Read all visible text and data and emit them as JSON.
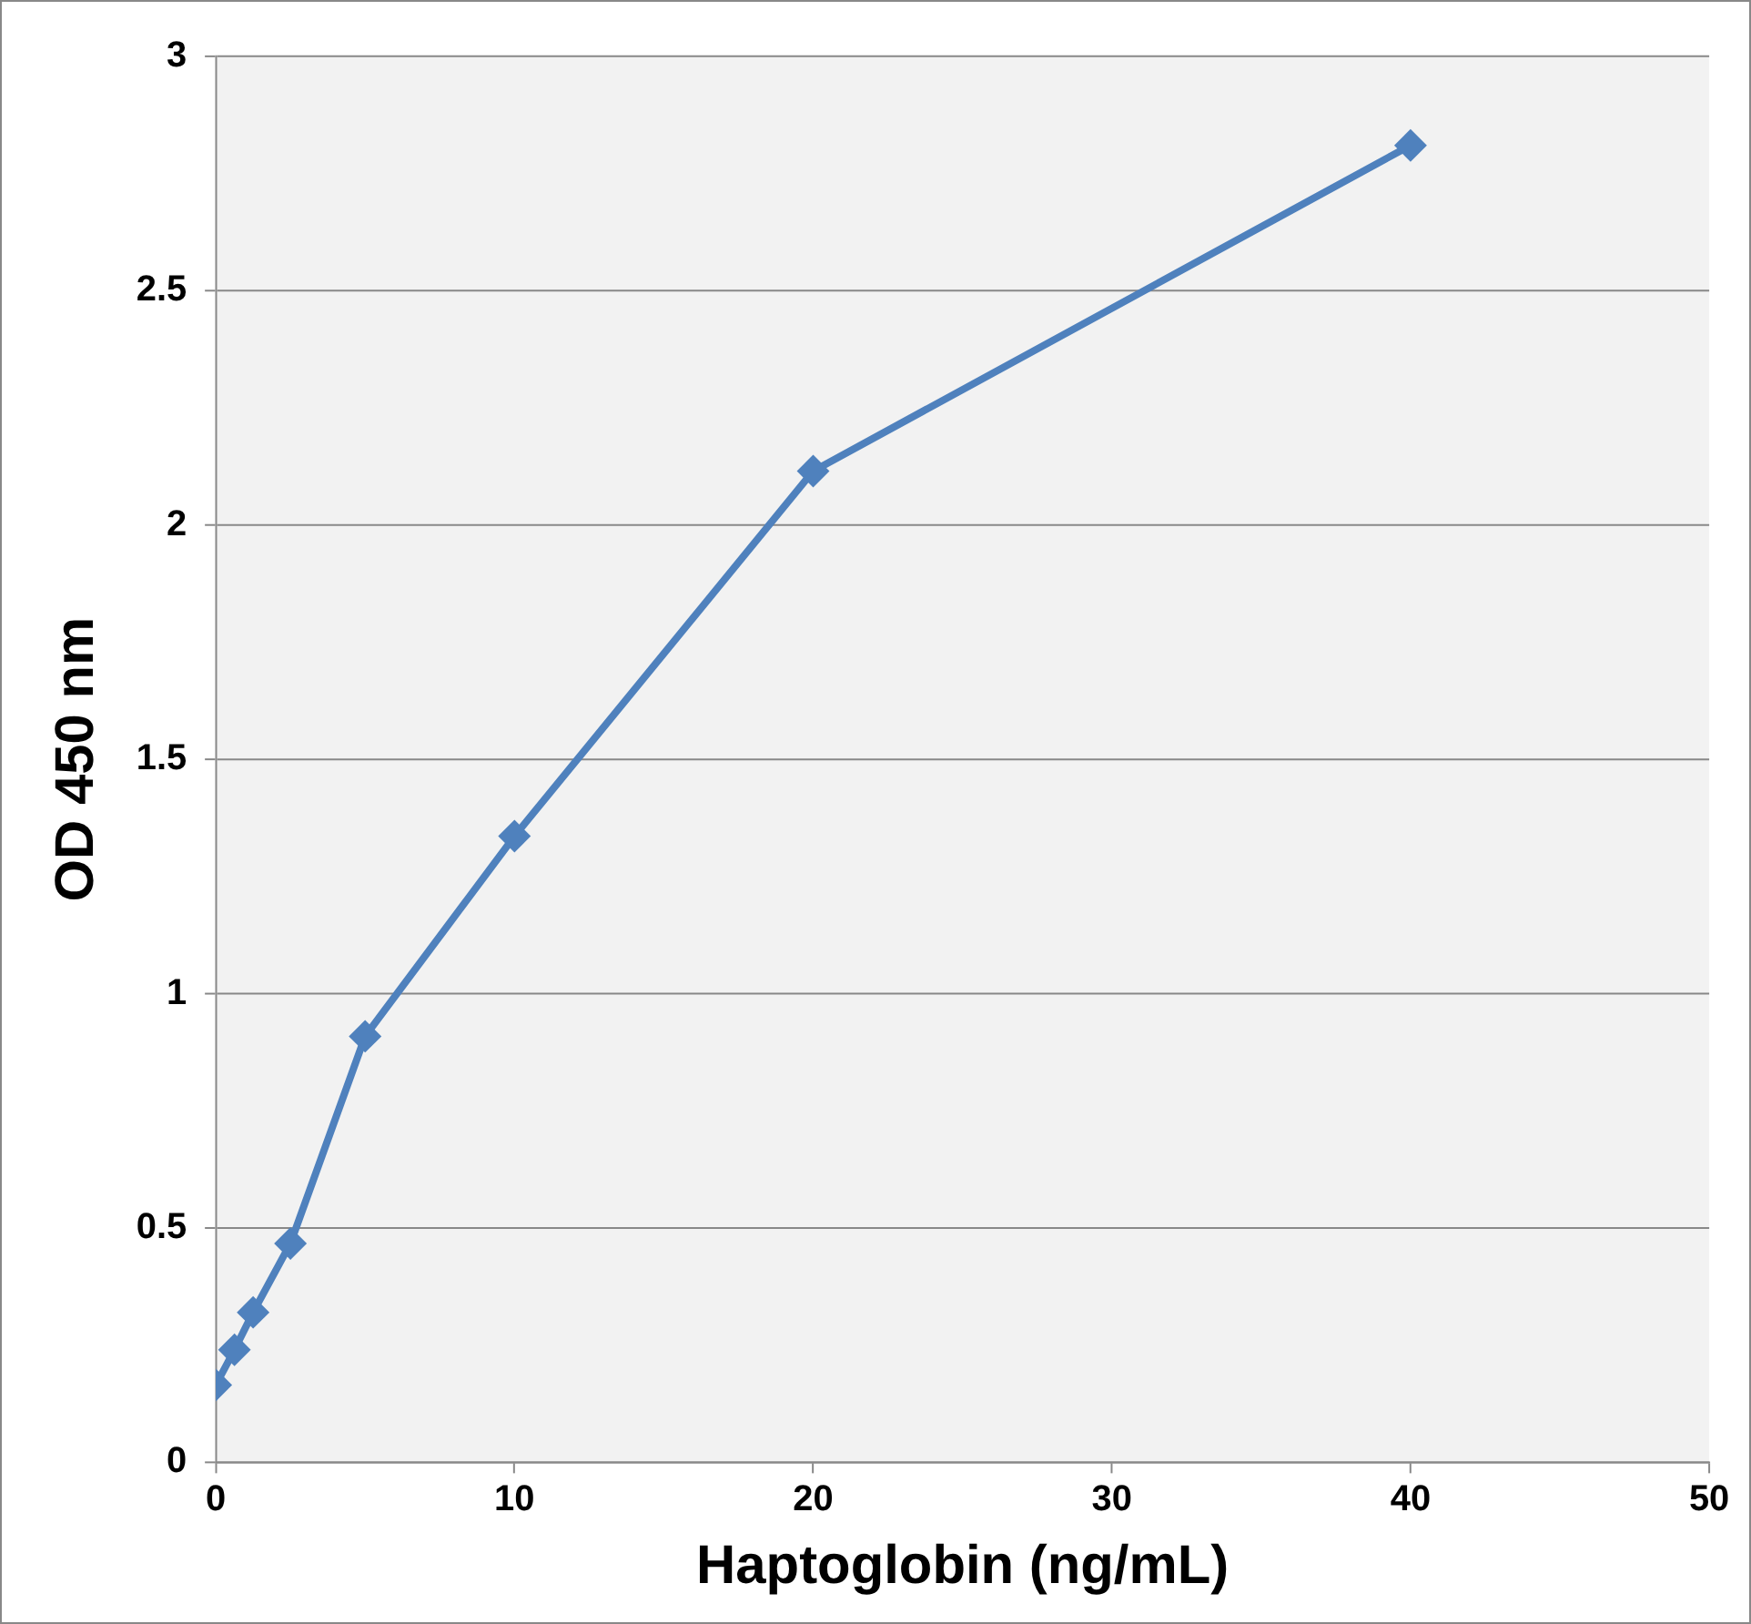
{
  "chart_data": {
    "type": "line",
    "xlabel": "Haptoglobin (ng/mL)",
    "ylabel": "OD 450 nm",
    "x": [
      0,
      0.625,
      1.25,
      2.5,
      5,
      10,
      20,
      40
    ],
    "series": [
      {
        "color": "#4f81bd",
        "values": [
          0.165,
          0.24,
          0.32,
          0.467,
          0.909,
          1.336,
          2.115,
          2.81
        ]
      }
    ],
    "xlim": [
      0,
      50
    ],
    "xticks": [
      0,
      10,
      20,
      30,
      40,
      50
    ],
    "ylim": [
      0,
      3
    ],
    "yticks": [
      0,
      0.5,
      1,
      1.5,
      2,
      2.5,
      3
    ],
    "grid": "y",
    "legend": false,
    "marker": "diamond",
    "line_style": "solid"
  }
}
